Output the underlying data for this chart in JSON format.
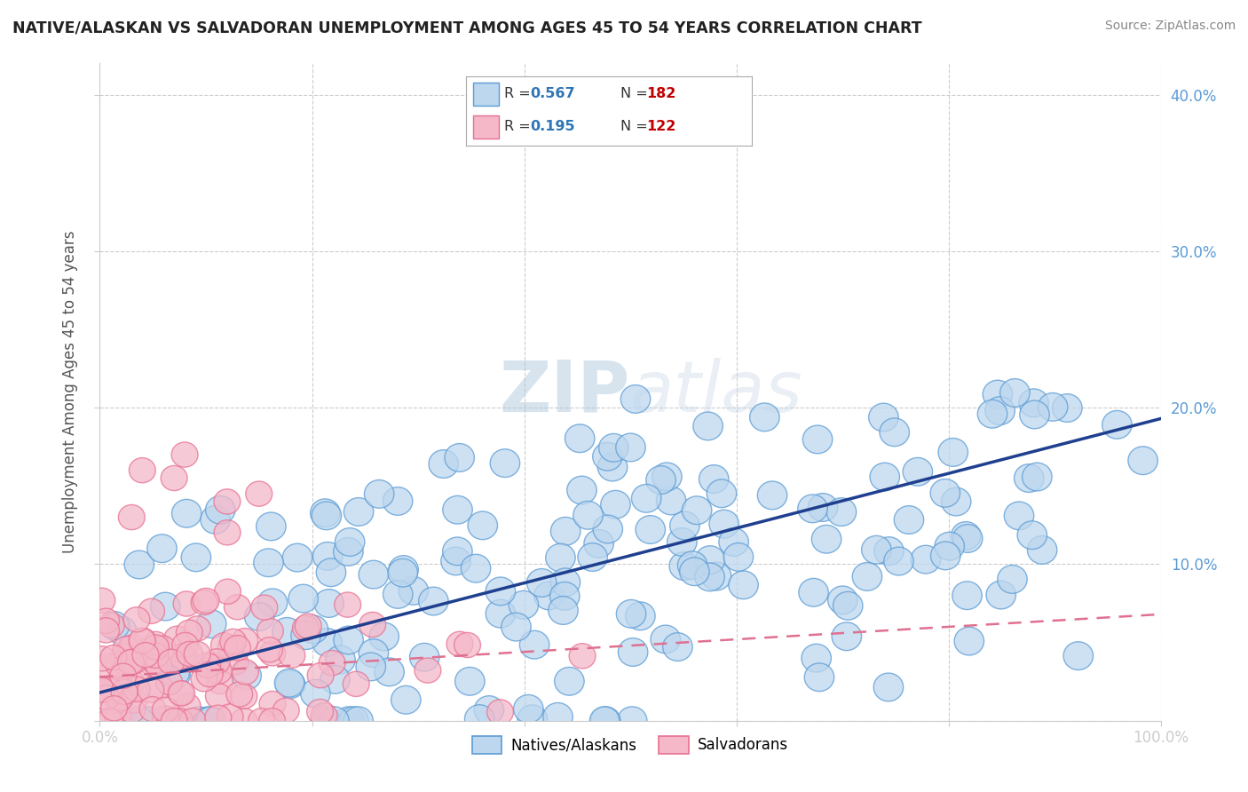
{
  "title": "NATIVE/ALASKAN VS SALVADORAN UNEMPLOYMENT AMONG AGES 45 TO 54 YEARS CORRELATION CHART",
  "source": "Source: ZipAtlas.com",
  "ylabel": "Unemployment Among Ages 45 to 54 years",
  "xlim": [
    0,
    1.0
  ],
  "ylim": [
    0,
    0.42
  ],
  "xticks": [
    0.0,
    0.2,
    0.4,
    0.6,
    0.8,
    1.0
  ],
  "yticks": [
    0.0,
    0.1,
    0.2,
    0.3,
    0.4
  ],
  "xtick_labels": [
    "0.0%",
    "",
    "",
    "",
    "",
    "100.0%"
  ],
  "ytick_labels_right": [
    "",
    "10.0%",
    "20.0%",
    "30.0%",
    "40.0%"
  ],
  "native_R": 0.567,
  "native_N": 182,
  "salvadoran_R": 0.195,
  "salvadoran_N": 122,
  "blue_fill": "#BDD7EE",
  "blue_edge": "#5B9BD5",
  "pink_fill": "#F4B8C9",
  "pink_edge": "#E87090",
  "trend_blue": "#1F3F8F",
  "trend_pink": "#E07090",
  "legend_R_color": "#2E75B6",
  "legend_N_color": "#C00000",
  "watermark_color": "#D8E8F0",
  "background_color": "#FFFFFF",
  "grid_color": "#CCCCCC",
  "title_color": "#222222",
  "source_color": "#888888",
  "ylabel_color": "#555555",
  "tick_color": "#5B9BD5"
}
